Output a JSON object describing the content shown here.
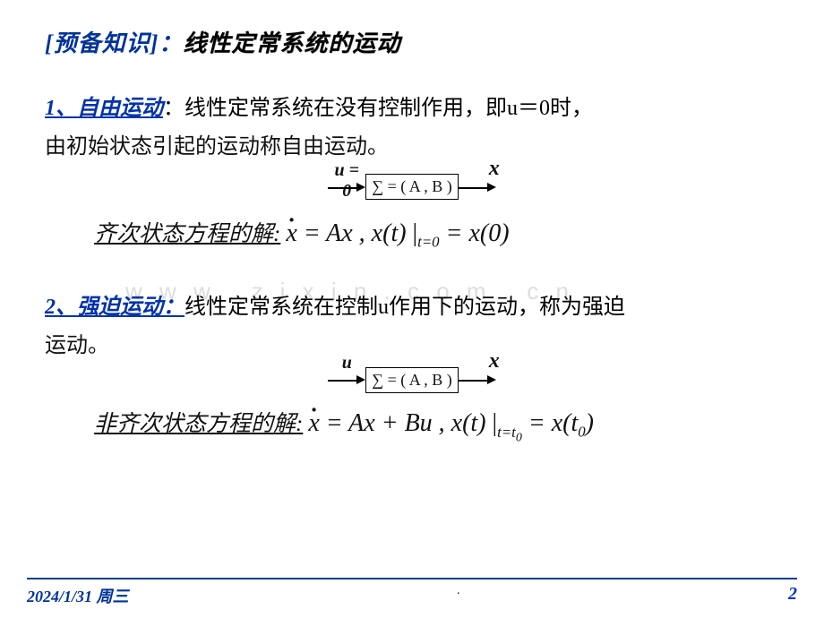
{
  "colors": {
    "accent_blue": "#003399",
    "page_blue": "#0033cc",
    "rule": "#004089",
    "text": "#000000",
    "watermark": "#dddddd"
  },
  "title": {
    "bracket_open": "[",
    "bracket_term": "预备知识",
    "bracket_close": "]：",
    "rest": "线性定常系统的运动"
  },
  "section1": {
    "num": "1、自由运动",
    "colon": "：",
    "desc_a": "线性定常系统在没有控制作用，即",
    "u_eq": "u＝0",
    "desc_b": "时，",
    "line2": "由初始状态引起的运动称自由运动。"
  },
  "diagram1": {
    "in_label": "u = 0",
    "box": "∑ = ( A , B )",
    "out_label": "x"
  },
  "eq1": {
    "label": "齐次状态方程的解:",
    "lhs_var": "x",
    "rhs1": " = Ax ,   x(t) ",
    "sub1": "t=0",
    "rhs2": " = x(0)"
  },
  "section2": {
    "num": "2、强迫运动：",
    "desc_a": "线性定常系统在控制",
    "u": "u",
    "desc_b": "作用下的运动，称为强迫",
    "line2": "运动。"
  },
  "diagram2": {
    "in_label": "u",
    "box": "∑ = ( A , B )",
    "out_label": "x"
  },
  "eq2": {
    "label": "非齐次状态方程的解:",
    "lhs_var": "x",
    "rhs1": " = Ax + Bu ,   x(t) ",
    "sub1": "t=t",
    "sub1b": "0",
    "rhs2": " = x(t",
    "rhs2sub": "0",
    "rhs2end": ")"
  },
  "watermark": "w w w . z i x i n . c o m . c n",
  "footer": {
    "date": "2024/1/31 周三",
    "center": ".",
    "page": "2"
  }
}
